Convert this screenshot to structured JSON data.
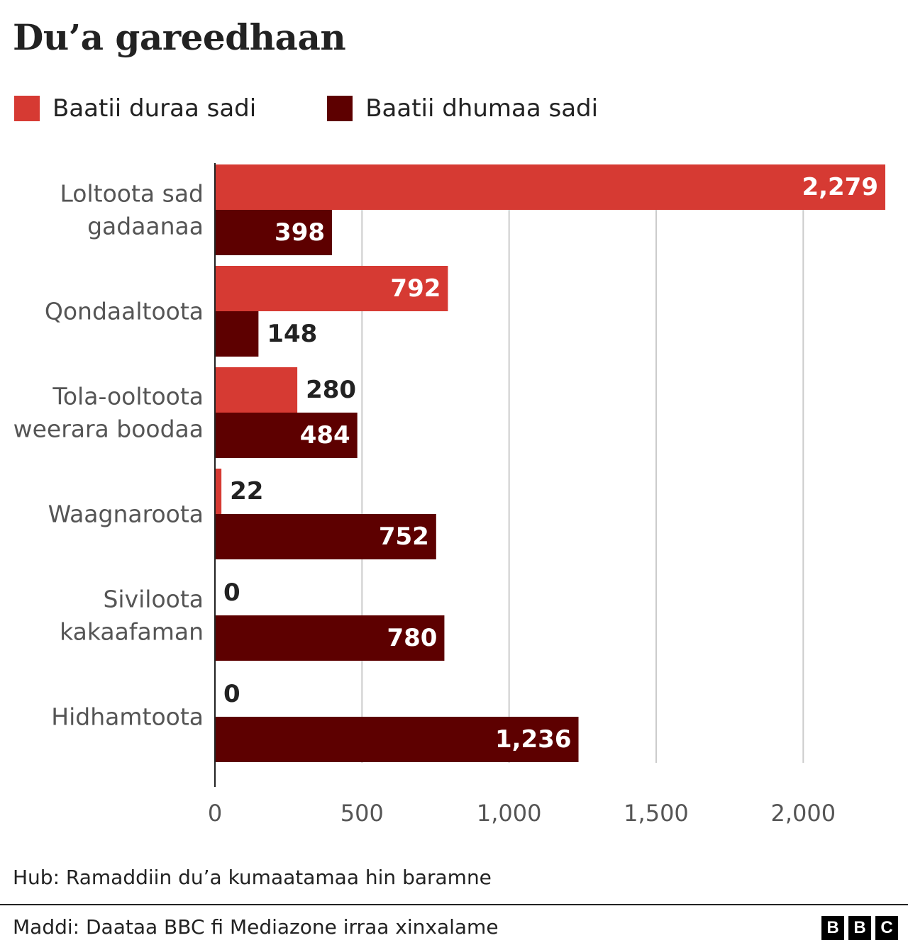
{
  "title": "Du’a gareedhaan",
  "legend": {
    "items": [
      {
        "label": "Baatii duraa sadi",
        "color": "#d63a33"
      },
      {
        "label": "Baatii dhumaa sadi",
        "color": "#5d0000"
      }
    ]
  },
  "chart_data": {
    "type": "bar",
    "orientation": "horizontal",
    "title": "Du’a gareedhaan",
    "categories": [
      [
        "Loltoota sad",
        "gadaanaa"
      ],
      [
        "Qondaaltoota"
      ],
      [
        "Tola-ooltoota",
        "weerara boodaa"
      ],
      [
        "Waagnaroota"
      ],
      [
        "Siviloota",
        "kakaafaman"
      ],
      [
        "Hidhamtoota"
      ]
    ],
    "series": [
      {
        "name": "Baatii duraa sadi",
        "color": "#d63a33",
        "values": [
          2279,
          792,
          280,
          22,
          0,
          0
        ]
      },
      {
        "name": "Baatii dhumaa sadi",
        "color": "#5d0000",
        "values": [
          398,
          148,
          484,
          752,
          780,
          1236
        ]
      }
    ],
    "value_labels": [
      [
        "2,279",
        "792",
        "280",
        "22",
        "0",
        "0"
      ],
      [
        "398",
        "148",
        "484",
        "752",
        "780",
        "1,236"
      ]
    ],
    "xlim": [
      0,
      2279
    ],
    "xticks": [
      0,
      500,
      1000,
      1500,
      2000
    ],
    "xtick_labels": [
      "0",
      "500",
      "1,000",
      "1,500",
      "2,000"
    ],
    "grid": true,
    "legend_position": "top-left"
  },
  "note": "Hub: Ramaddiin du’a kumaatamaa hin baramne",
  "source": "Maddi: Daataa BBC fi Mediazone irraa xinxalame",
  "logo": [
    "B",
    "B",
    "C"
  ]
}
